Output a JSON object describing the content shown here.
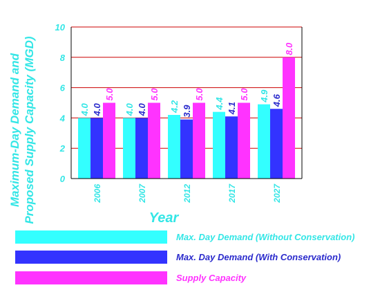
{
  "chart_data": {
    "type": "bar",
    "title": "",
    "xlabel": "Year",
    "ylabel": "Maximum-Day Demand and Proposed Supply Capacity (MGD)",
    "ylabel_lines": [
      "Maximum-Day Demand and",
      "Proposed Supply Capacity (MGD)"
    ],
    "categories": [
      "2006",
      "2007",
      "2012",
      "2017",
      "2027"
    ],
    "ylim": [
      0,
      10
    ],
    "yticks": [
      "0",
      "2",
      "4",
      "6",
      "8",
      "10"
    ],
    "grid": true,
    "legend_position": "bottom",
    "series": [
      {
        "name": "Max. Day Demand (Without Conservation)",
        "values": [
          4.0,
          4.0,
          4.2,
          4.4,
          4.9
        ],
        "labels": [
          "4.0",
          "4.0",
          "4.2",
          "4.4",
          "4.9"
        ],
        "color": "#33ffff",
        "text_color": "#33e6e6"
      },
      {
        "name": "Max. Day Demand (With Conservation)",
        "values": [
          4.0,
          4.0,
          3.9,
          4.1,
          4.6
        ],
        "labels": [
          "4.0",
          "4.0",
          "3.9",
          "4.1",
          "4.6"
        ],
        "color": "#3333ff",
        "text_color": "#2a2acc"
      },
      {
        "name": "Supply Capacity",
        "values": [
          5.0,
          5.0,
          5.0,
          5.0,
          8.0
        ],
        "labels": [
          "5.0",
          "5.0",
          "5.0",
          "5.0",
          "8.0"
        ],
        "color": "#ff33ff",
        "text_color": "#ff33ff"
      }
    ]
  },
  "colors": {
    "axis_text": "#33e6e6",
    "gridline": "#cc0000"
  }
}
